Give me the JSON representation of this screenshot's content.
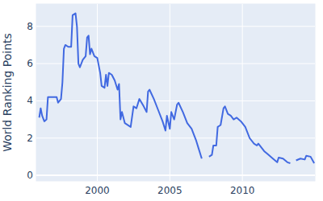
{
  "chart_data": {
    "type": "line",
    "y_label": "World Ranking Points",
    "color": "#4169e1",
    "grid": true,
    "xlim": [
      1995.8,
      2015.0
    ],
    "ylim": [
      -0.3,
      9.2
    ],
    "xticks": [
      2000,
      2005,
      2010
    ],
    "yticks": [
      0,
      2,
      4,
      6,
      8
    ],
    "x": [
      1996.0,
      1996.1,
      1996.2,
      1996.35,
      1996.5,
      1996.6,
      1996.75,
      1997.0,
      1997.2,
      1997.3,
      1997.5,
      1997.6,
      1997.7,
      1997.8,
      1998.0,
      1998.2,
      1998.3,
      1998.5,
      1998.6,
      1998.7,
      1998.8,
      1999.0,
      1999.2,
      1999.3,
      1999.4,
      1999.5,
      1999.6,
      1999.8,
      2000.0,
      2000.2,
      2000.3,
      2000.5,
      2000.6,
      2000.7,
      2000.8,
      2001.0,
      2001.2,
      2001.4,
      2001.5,
      2001.6,
      2001.7,
      2001.9,
      2002.3,
      2002.5,
      2002.7,
      2002.9,
      2003.2,
      2003.4,
      2003.5,
      2003.6,
      2003.9,
      2004.0,
      2004.2,
      2004.5,
      2004.7,
      2004.8,
      2005.0,
      2005.1,
      2005.3,
      2005.5,
      2005.6,
      2005.9,
      2006.2,
      2006.5,
      2006.8,
      2007.0,
      2007.2,
      2007.45,
      2007.7,
      2007.9,
      2008.0,
      2008.2,
      2008.3,
      2008.5,
      2008.7,
      2008.8,
      2009.0,
      2009.2,
      2009.4,
      2009.6,
      2009.9,
      2010.2,
      2010.5,
      2010.8,
      2011.0,
      2011.1,
      2011.5,
      2011.8,
      2012.1,
      2012.4,
      2012.5,
      2012.8,
      2013.1,
      2013.3,
      2013.5,
      2013.7,
      2014.0,
      2014.3,
      2014.4,
      2014.7,
      2014.95
    ],
    "values": [
      3.1,
      3.6,
      3.2,
      2.9,
      3.0,
      4.2,
      4.2,
      4.2,
      4.2,
      3.9,
      4.1,
      5.0,
      6.8,
      7.0,
      6.9,
      6.9,
      8.6,
      8.7,
      8.0,
      6.0,
      5.8,
      6.2,
      6.4,
      7.4,
      7.5,
      6.5,
      6.8,
      6.4,
      6.3,
      5.5,
      4.8,
      4.7,
      5.4,
      4.8,
      5.5,
      5.4,
      5.1,
      4.6,
      4.9,
      3.0,
      3.4,
      2.8,
      2.6,
      3.7,
      3.6,
      4.1,
      3.7,
      3.4,
      4.5,
      4.6,
      4.1,
      3.9,
      3.5,
      2.9,
      2.4,
      3.2,
      2.5,
      3.4,
      3.0,
      3.8,
      3.9,
      3.4,
      2.8,
      2.5,
      1.9,
      1.4,
      0.9,
      null,
      1.0,
      1.1,
      1.6,
      1.6,
      2.6,
      2.7,
      3.6,
      3.7,
      3.3,
      3.2,
      3.0,
      3.1,
      2.9,
      2.6,
      2.0,
      1.7,
      1.6,
      1.7,
      1.3,
      1.1,
      0.9,
      0.7,
      0.95,
      0.9,
      0.7,
      0.65,
      null,
      0.8,
      0.9,
      0.85,
      1.05,
      1.0,
      0.65
    ]
  }
}
